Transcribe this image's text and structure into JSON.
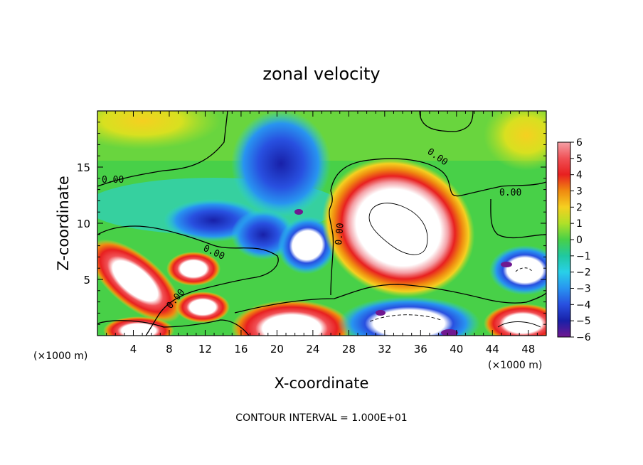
{
  "chart_data": {
    "type": "heatmap",
    "title": "zonal velocity",
    "xlabel": "X-coordinate",
    "ylabel": "Z-coordinate",
    "x_unit_label": "(×1000 m)",
    "x_unit_label_right": "(×1000 m)",
    "xlim": [
      0,
      50
    ],
    "ylim": [
      0,
      20
    ],
    "x_ticks": [
      4,
      8,
      12,
      16,
      20,
      24,
      28,
      32,
      36,
      40,
      44,
      48
    ],
    "y_ticks": [
      5,
      10,
      15
    ],
    "colorbar": {
      "ticks": [
        6,
        5,
        4,
        3,
        2,
        1,
        0,
        -1,
        -2,
        -3,
        -4,
        -5,
        -6
      ],
      "colors": [
        {
          "value": 6,
          "color": "#f4a0a6"
        },
        {
          "value": 5,
          "color": "#f05055"
        },
        {
          "value": 4,
          "color": "#e82020"
        },
        {
          "value": 3,
          "color": "#f08a10"
        },
        {
          "value": 2,
          "color": "#f5d020"
        },
        {
          "value": 1,
          "color": "#b0e028"
        },
        {
          "value": 0,
          "color": "#48d048"
        },
        {
          "value": -1,
          "color": "#20c8a0"
        },
        {
          "value": -2,
          "color": "#28d0e8"
        },
        {
          "value": -3,
          "color": "#2894f0"
        },
        {
          "value": -4,
          "color": "#2850e0"
        },
        {
          "value": -5,
          "color": "#1820a8"
        },
        {
          "value": -6,
          "color": "#701890"
        }
      ]
    },
    "contour_labels": [
      "0.00",
      "0.00",
      "0.00",
      "0.00",
      "0.00",
      "0.00"
    ],
    "contour_interval_text": "CONTOUR INTERVAL = 1.000E+01"
  }
}
